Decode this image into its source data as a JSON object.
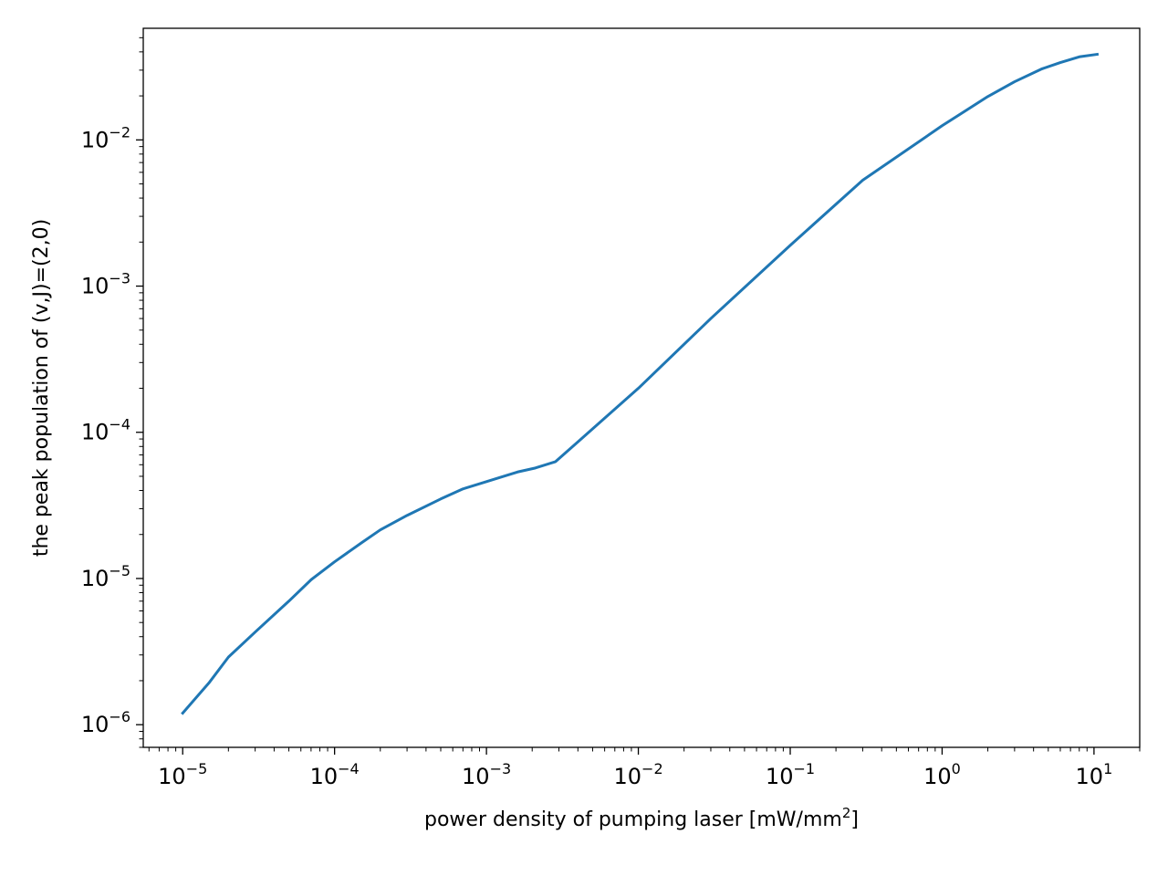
{
  "chart_data": {
    "type": "line",
    "title": "",
    "xlabel": "power density of pumping laser [mW/mm",
    "xlabel_sup": "2",
    "xlabel_end": "]",
    "ylabel": "the peak population of (v,J)=(2,0)",
    "xscale": "log",
    "yscale": "log",
    "xlim": [
      5.5e-06,
      20
    ],
    "ylim": [
      7e-07,
      0.058
    ],
    "grid": false,
    "legend": "none",
    "x_ticks": [
      {
        "value": 1e-05,
        "base": "10",
        "exp": "−5"
      },
      {
        "value": 0.0001,
        "base": "10",
        "exp": "−4"
      },
      {
        "value": 0.001,
        "base": "10",
        "exp": "−3"
      },
      {
        "value": 0.01,
        "base": "10",
        "exp": "−2"
      },
      {
        "value": 0.1,
        "base": "10",
        "exp": "−1"
      },
      {
        "value": 1,
        "base": "10",
        "exp": "0"
      },
      {
        "value": 10,
        "base": "10",
        "exp": "1"
      }
    ],
    "y_ticks": [
      {
        "value": 1e-06,
        "base": "10",
        "exp": "−6"
      },
      {
        "value": 1e-05,
        "base": "10",
        "exp": "−5"
      },
      {
        "value": 0.0001,
        "base": "10",
        "exp": "−4"
      },
      {
        "value": 0.001,
        "base": "10",
        "exp": "−3"
      },
      {
        "value": 0.01,
        "base": "10",
        "exp": "−2"
      }
    ],
    "series": [
      {
        "color": "#1f77b4",
        "x": [
          1e-05,
          1.5e-05,
          2e-05,
          3e-05,
          5e-05,
          7e-05,
          0.0001,
          0.00015,
          0.0002,
          0.0003,
          0.0005,
          0.0007,
          0.001,
          0.0013,
          0.0016,
          0.0021,
          0.00285,
          0.01,
          0.03,
          0.1,
          0.3,
          1,
          2,
          3,
          4.5,
          6,
          8,
          10.5
        ],
        "y": [
          1.2e-06,
          1.95e-06,
          2.9e-06,
          4.3e-06,
          7e-06,
          9.8e-06,
          1.3e-05,
          1.75e-05,
          2.15e-05,
          2.7e-05,
          3.5e-05,
          4.1e-05,
          4.6e-05,
          5e-05,
          5.35e-05,
          5.7e-05,
          6.3e-05,
          0.0002,
          0.0006,
          0.0019,
          0.0053,
          0.0125,
          0.0198,
          0.025,
          0.0305,
          0.0338,
          0.037,
          0.0385
        ]
      }
    ]
  }
}
